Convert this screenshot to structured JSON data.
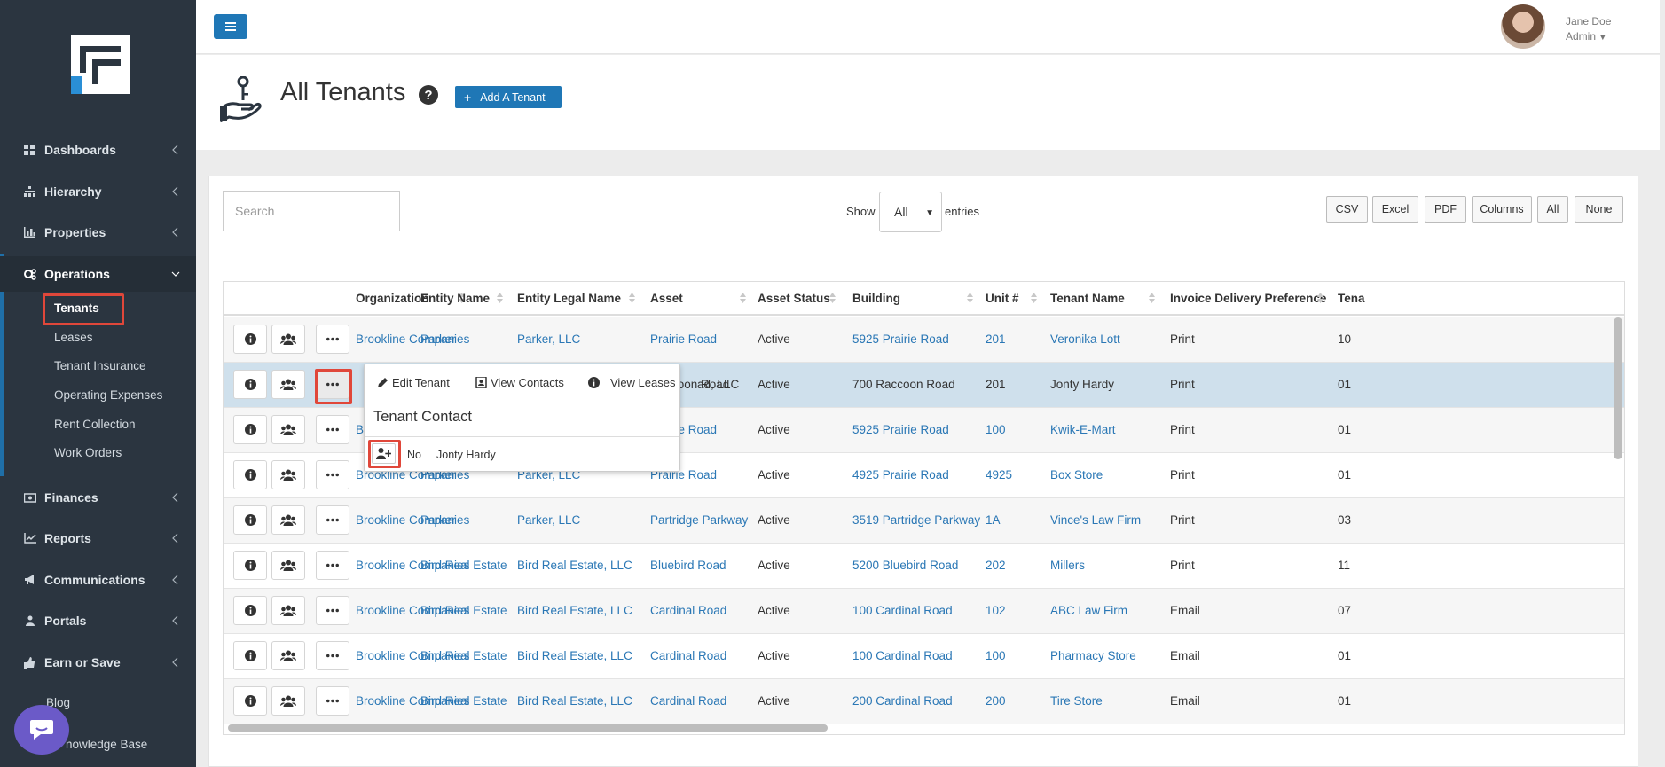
{
  "sidebar": {
    "logo": "F",
    "items": [
      {
        "label": "Dashboards",
        "icon": "dashboard-icon"
      },
      {
        "label": "Hierarchy",
        "icon": "sitemap-icon"
      },
      {
        "label": "Properties",
        "icon": "chart-icon"
      },
      {
        "label": "Operations",
        "icon": "cogs-icon"
      },
      {
        "label": "Finances",
        "icon": "money-icon"
      },
      {
        "label": "Reports",
        "icon": "line-chart-icon"
      },
      {
        "label": "Communications",
        "icon": "bullhorn-icon"
      },
      {
        "label": "Portals",
        "icon": "users-icon"
      },
      {
        "label": "Earn or Save",
        "icon": "thumbs-up-icon"
      }
    ],
    "operations_sub": [
      "Tenants",
      "Leases",
      "Tenant Insurance",
      "Operating Expenses",
      "Rent Collection",
      "Work Orders"
    ],
    "partial_blog": "Blog",
    "partial_kb": "nowledge Base"
  },
  "topbar": {
    "user_name": "Jane Doe",
    "user_role": "Admin"
  },
  "header": {
    "title": "All Tenants",
    "help": "?",
    "add_button": "Add A Tenant",
    "add_plus": "+"
  },
  "controls": {
    "search_placeholder": "Search",
    "show_label": "Show",
    "show_value": "All",
    "entries_label": "entries",
    "buttons": [
      "CSV",
      "Excel",
      "PDF",
      "Columns",
      "All",
      "None"
    ]
  },
  "table": {
    "headers": [
      "Organization",
      "Entity Name",
      "Entity Legal Name",
      "Asset",
      "Asset Status",
      "Building",
      "Unit #",
      "Tenant Name",
      "Invoice Delivery Preference",
      "Tena"
    ],
    "rows": [
      [
        "Brookline Companies",
        "Parker",
        "Parker, LLC",
        "Prairie Road",
        "Active",
        "5925 Prairie Road",
        "201",
        "Veronika Lott",
        "Print",
        "10"
      ],
      [
        "",
        "",
        "ad, LLC",
        "Raccoon Road",
        "Active",
        "700 Raccoon Road",
        "201",
        "Jonty Hardy",
        "Print",
        "01"
      ],
      [
        "B",
        "",
        "",
        "Prairie Road",
        "Active",
        "5925 Prairie Road",
        "100",
        "Kwik-E-Mart",
        "Print",
        "01"
      ],
      [
        "Brookline Companies",
        "Parker",
        "Parker, LLC",
        "Prairie Road",
        "Active",
        "4925 Prairie Road",
        "4925",
        "Box Store",
        "Print",
        "01"
      ],
      [
        "Brookline Companies",
        "Parker",
        "Parker, LLC",
        "Partridge Parkway",
        "Active",
        "3519 Partridge Parkway",
        "1A",
        "Vince's Law Firm",
        "Print",
        "03"
      ],
      [
        "Brookline Companies",
        "Bird Real Estate",
        "Bird Real Estate, LLC",
        "Bluebird Road",
        "Active",
        "5200 Bluebird Road",
        "202",
        "Millers",
        "Print",
        "11"
      ],
      [
        "Brookline Companies",
        "Bird Real Estate",
        "Bird Real Estate, LLC",
        "Cardinal Road",
        "Active",
        "100 Cardinal Road",
        "102",
        "ABC Law Firm",
        "Email",
        "07"
      ],
      [
        "Brookline Companies",
        "Bird Real Estate",
        "Bird Real Estate, LLC",
        "Cardinal Road",
        "Active",
        "100 Cardinal Road",
        "100",
        "Pharmacy Store",
        "Email",
        "01"
      ],
      [
        "Brookline Companies",
        "Bird Real Estate",
        "Bird Real Estate, LLC",
        "Cardinal Road",
        "Active",
        "200 Cardinal Road",
        "200",
        "Tire Store",
        "Email",
        "01"
      ]
    ]
  },
  "popover": {
    "actions": [
      "Edit Tenant",
      "View Contacts",
      "View Leases"
    ],
    "title": "Tenant Contact",
    "contact_primary": "No",
    "contact_name": "Jonty Hardy"
  },
  "colors": {
    "sidebar_bg": "#2b3540",
    "accent": "#1f77b6",
    "link": "#2a77b5",
    "highlight": "#e0473a",
    "selected_row": "#cfe0ec"
  }
}
